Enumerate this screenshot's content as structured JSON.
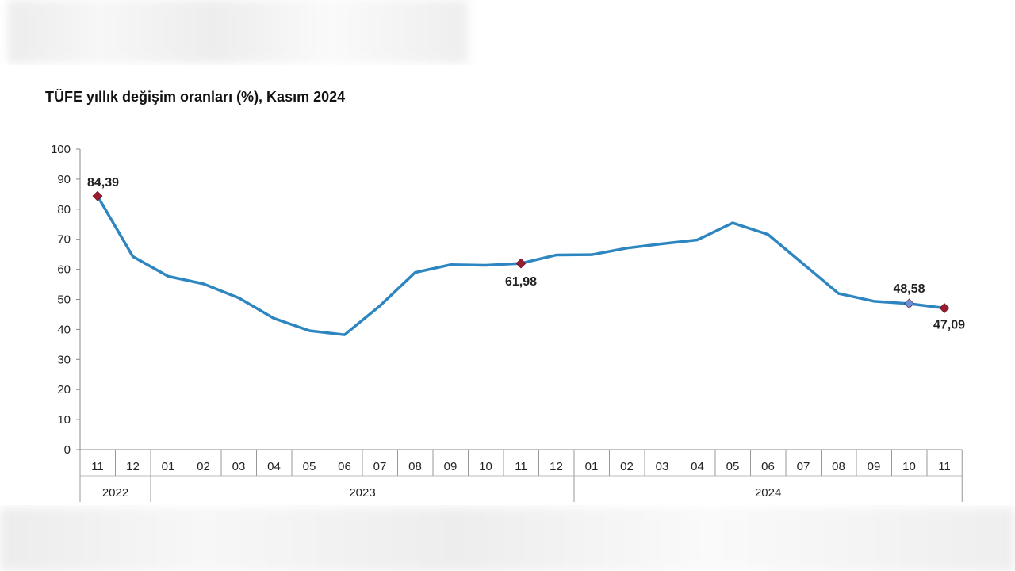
{
  "chart_data": {
    "type": "line",
    "title": "TÜFE yıllık değişim oranları (%), Kasım 2024",
    "xlabel": "",
    "ylabel": "",
    "ylim": [
      0,
      100
    ],
    "yticks": [
      "0",
      "10",
      "20",
      "30",
      "40",
      "50",
      "60",
      "70",
      "80",
      "90",
      "100"
    ],
    "categories": [
      "11",
      "12",
      "01",
      "02",
      "03",
      "04",
      "05",
      "06",
      "07",
      "08",
      "09",
      "10",
      "11",
      "12",
      "01",
      "02",
      "03",
      "04",
      "05",
      "06",
      "07",
      "08",
      "09",
      "10",
      "11"
    ],
    "years": [
      {
        "label": "2022",
        "start": 0,
        "end": 1
      },
      {
        "label": "2023",
        "start": 2,
        "end": 13
      },
      {
        "label": "2024",
        "start": 14,
        "end": 24
      }
    ],
    "values": [
      84.39,
      64.27,
      57.68,
      55.18,
      50.51,
      43.68,
      39.59,
      38.21,
      47.83,
      58.94,
      61.53,
      61.36,
      61.98,
      64.77,
      64.86,
      67.07,
      68.5,
      69.8,
      75.45,
      71.6,
      61.78,
      51.97,
      49.38,
      48.58,
      47.09
    ],
    "line_color": "#2e86c1",
    "annotations": [
      {
        "index": 0,
        "text": "84,39",
        "marker_color": "#9b1b30"
      },
      {
        "index": 12,
        "text": "61,98",
        "marker_color": "#9b1b30"
      },
      {
        "index": 23,
        "text": "48,58",
        "marker_color": "#6b8fd6"
      },
      {
        "index": 24,
        "text": "47,09",
        "marker_color": "#9b1b30"
      }
    ],
    "grid": false
  }
}
